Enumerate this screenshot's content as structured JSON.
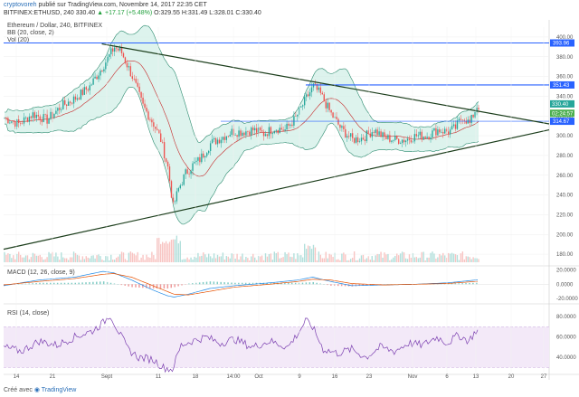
{
  "header": {
    "author": "cryptovoreh",
    "published": "publié sur TradingView.com, Novembre 14, 2017 22:35 CET",
    "symbol": "BITFINEX:ETHUSD, 240",
    "last": "330.40",
    "change": "▲ +17.17 (+5.48%)",
    "ohlc": "O:329.55 H:331.49 L:328.01 C:330.40"
  },
  "legends": {
    "title": "Ethereum / Dollar, 240, BITFINEX",
    "bb": "BB (20, close, 2)",
    "vol": "Vol (20)",
    "macd": "MACD (12, 26, close, 9)",
    "rsi": "RSI (14, close)"
  },
  "footer": {
    "created": "Créé avec",
    "brand": "TradingView"
  },
  "colors": {
    "up": "#26a69a",
    "down": "#ef5350",
    "bb_fill": "#cfeee6",
    "bb_line": "#2b8a6e",
    "hline": "#2962ff",
    "trend": "#1b3d1b",
    "macd": "#1e88e5",
    "signal": "#e65100",
    "rsi": "#7b3fb0"
  },
  "chart_data": [
    {
      "type": "candlestick",
      "pane": "price",
      "title": "Ethereum / Dollar, 240, BITFINEX",
      "ylim": [
        170,
        410
      ],
      "yticks": [
        180,
        200,
        220,
        240,
        260,
        280,
        300,
        320,
        340,
        360,
        380,
        400
      ],
      "x_ticks": [
        "14",
        "21",
        "Sept",
        "11",
        "18",
        "14:00",
        "Oct",
        "9",
        "16",
        "23",
        "Nov",
        "6",
        "13",
        "20",
        "27"
      ],
      "close_path": [
        [
          0,
          318
        ],
        [
          8,
          312
        ],
        [
          16,
          322
        ],
        [
          24,
          316
        ],
        [
          32,
          330
        ],
        [
          40,
          338
        ],
        [
          48,
          350
        ],
        [
          56,
          372
        ],
        [
          62,
          390
        ],
        [
          66,
          384
        ],
        [
          72,
          360
        ],
        [
          78,
          330
        ],
        [
          84,
          312
        ],
        [
          88,
          296
        ],
        [
          92,
          268
        ],
        [
          95,
          228
        ],
        [
          98,
          246
        ],
        [
          102,
          262
        ],
        [
          106,
          270
        ],
        [
          110,
          276
        ],
        [
          116,
          292
        ],
        [
          122,
          298
        ],
        [
          128,
          304
        ],
        [
          134,
          304
        ],
        [
          140,
          306
        ],
        [
          146,
          302
        ],
        [
          152,
          308
        ],
        [
          158,
          306
        ],
        [
          164,
          318
        ],
        [
          170,
          338
        ],
        [
          174,
          350
        ],
        [
          178,
          342
        ],
        [
          184,
          322
        ],
        [
          190,
          306
        ],
        [
          196,
          296
        ],
        [
          202,
          298
        ],
        [
          208,
          306
        ],
        [
          214,
          298
        ],
        [
          220,
          296
        ],
        [
          226,
          296
        ],
        [
          232,
          300
        ],
        [
          238,
          300
        ],
        [
          244,
          306
        ],
        [
          250,
          304
        ],
        [
          254,
          308
        ],
        [
          258,
          320
        ],
        [
          262,
          312
        ],
        [
          266,
          330
        ]
      ],
      "candles": 268,
      "volume_max": 1,
      "horizontal_levels": [
        {
          "value": 393.96,
          "label": "393.96"
        },
        {
          "value": 351.43,
          "label": "351.43"
        },
        {
          "value": 314.67,
          "label": "314.67"
        }
      ],
      "price_labels": [
        {
          "value": 330.4,
          "label": "330.40"
        },
        {
          "value": 324.57,
          "label": "02:24:57"
        }
      ],
      "trendlines": [
        {
          "from": [
            0,
            382
          ],
          "to": [
            300,
            312
          ]
        },
        {
          "from": [
            0,
            185
          ],
          "to": [
            300,
            306
          ]
        }
      ]
    },
    {
      "type": "line",
      "pane": "macd",
      "title": "MACD (12, 26, close, 9)",
      "yticks": [
        20,
        0,
        -20
      ],
      "ylim": [
        -25,
        22
      ],
      "series": [
        {
          "name": "MACD",
          "points": [
            [
              0,
              -2
            ],
            [
              20,
              6
            ],
            [
              40,
              10
            ],
            [
              56,
              18
            ],
            [
              62,
              16
            ],
            [
              72,
              6
            ],
            [
              84,
              -8
            ],
            [
              92,
              -16
            ],
            [
              96,
              -18
            ],
            [
              104,
              -14
            ],
            [
              116,
              -6
            ],
            [
              130,
              -2
            ],
            [
              150,
              2
            ],
            [
              166,
              6
            ],
            [
              174,
              10
            ],
            [
              184,
              4
            ],
            [
              196,
              -2
            ],
            [
              214,
              -1
            ],
            [
              232,
              0
            ],
            [
              250,
              2
            ],
            [
              266,
              6
            ]
          ]
        },
        {
          "name": "Signal",
          "points": [
            [
              0,
              -1
            ],
            [
              20,
              4
            ],
            [
              40,
              8
            ],
            [
              56,
              14
            ],
            [
              62,
              15
            ],
            [
              72,
              10
            ],
            [
              84,
              -2
            ],
            [
              92,
              -10
            ],
            [
              96,
              -14
            ],
            [
              104,
              -15
            ],
            [
              116,
              -10
            ],
            [
              130,
              -4
            ],
            [
              150,
              0
            ],
            [
              166,
              4
            ],
            [
              174,
              7
            ],
            [
              184,
              6
            ],
            [
              196,
              1
            ],
            [
              214,
              -1
            ],
            [
              232,
              0
            ],
            [
              250,
              1
            ],
            [
              266,
              4
            ]
          ]
        }
      ]
    },
    {
      "type": "line",
      "pane": "rsi",
      "title": "RSI (14, close)",
      "yticks": [
        80,
        60,
        40
      ],
      "ylim": [
        25,
        90
      ],
      "bands": [
        70,
        30
      ],
      "series": [
        {
          "name": "RSI",
          "points": [
            [
              0,
              50
            ],
            [
              10,
              46
            ],
            [
              20,
              56
            ],
            [
              30,
              52
            ],
            [
              40,
              60
            ],
            [
              50,
              66
            ],
            [
              56,
              74
            ],
            [
              60,
              82
            ],
            [
              64,
              68
            ],
            [
              70,
              48
            ],
            [
              76,
              40
            ],
            [
              84,
              38
            ],
            [
              90,
              30
            ],
            [
              95,
              28
            ],
            [
              100,
              52
            ],
            [
              106,
              56
            ],
            [
              114,
              60
            ],
            [
              122,
              54
            ],
            [
              130,
              58
            ],
            [
              140,
              50
            ],
            [
              150,
              56
            ],
            [
              160,
              50
            ],
            [
              166,
              64
            ],
            [
              170,
              76
            ],
            [
              174,
              70
            ],
            [
              180,
              48
            ],
            [
              188,
              44
            ],
            [
              196,
              48
            ],
            [
              204,
              40
            ],
            [
              212,
              50
            ],
            [
              220,
              46
            ],
            [
              228,
              54
            ],
            [
              236,
              52
            ],
            [
              244,
              60
            ],
            [
              250,
              54
            ],
            [
              256,
              62
            ],
            [
              262,
              56
            ],
            [
              266,
              66
            ]
          ]
        }
      ]
    }
  ]
}
